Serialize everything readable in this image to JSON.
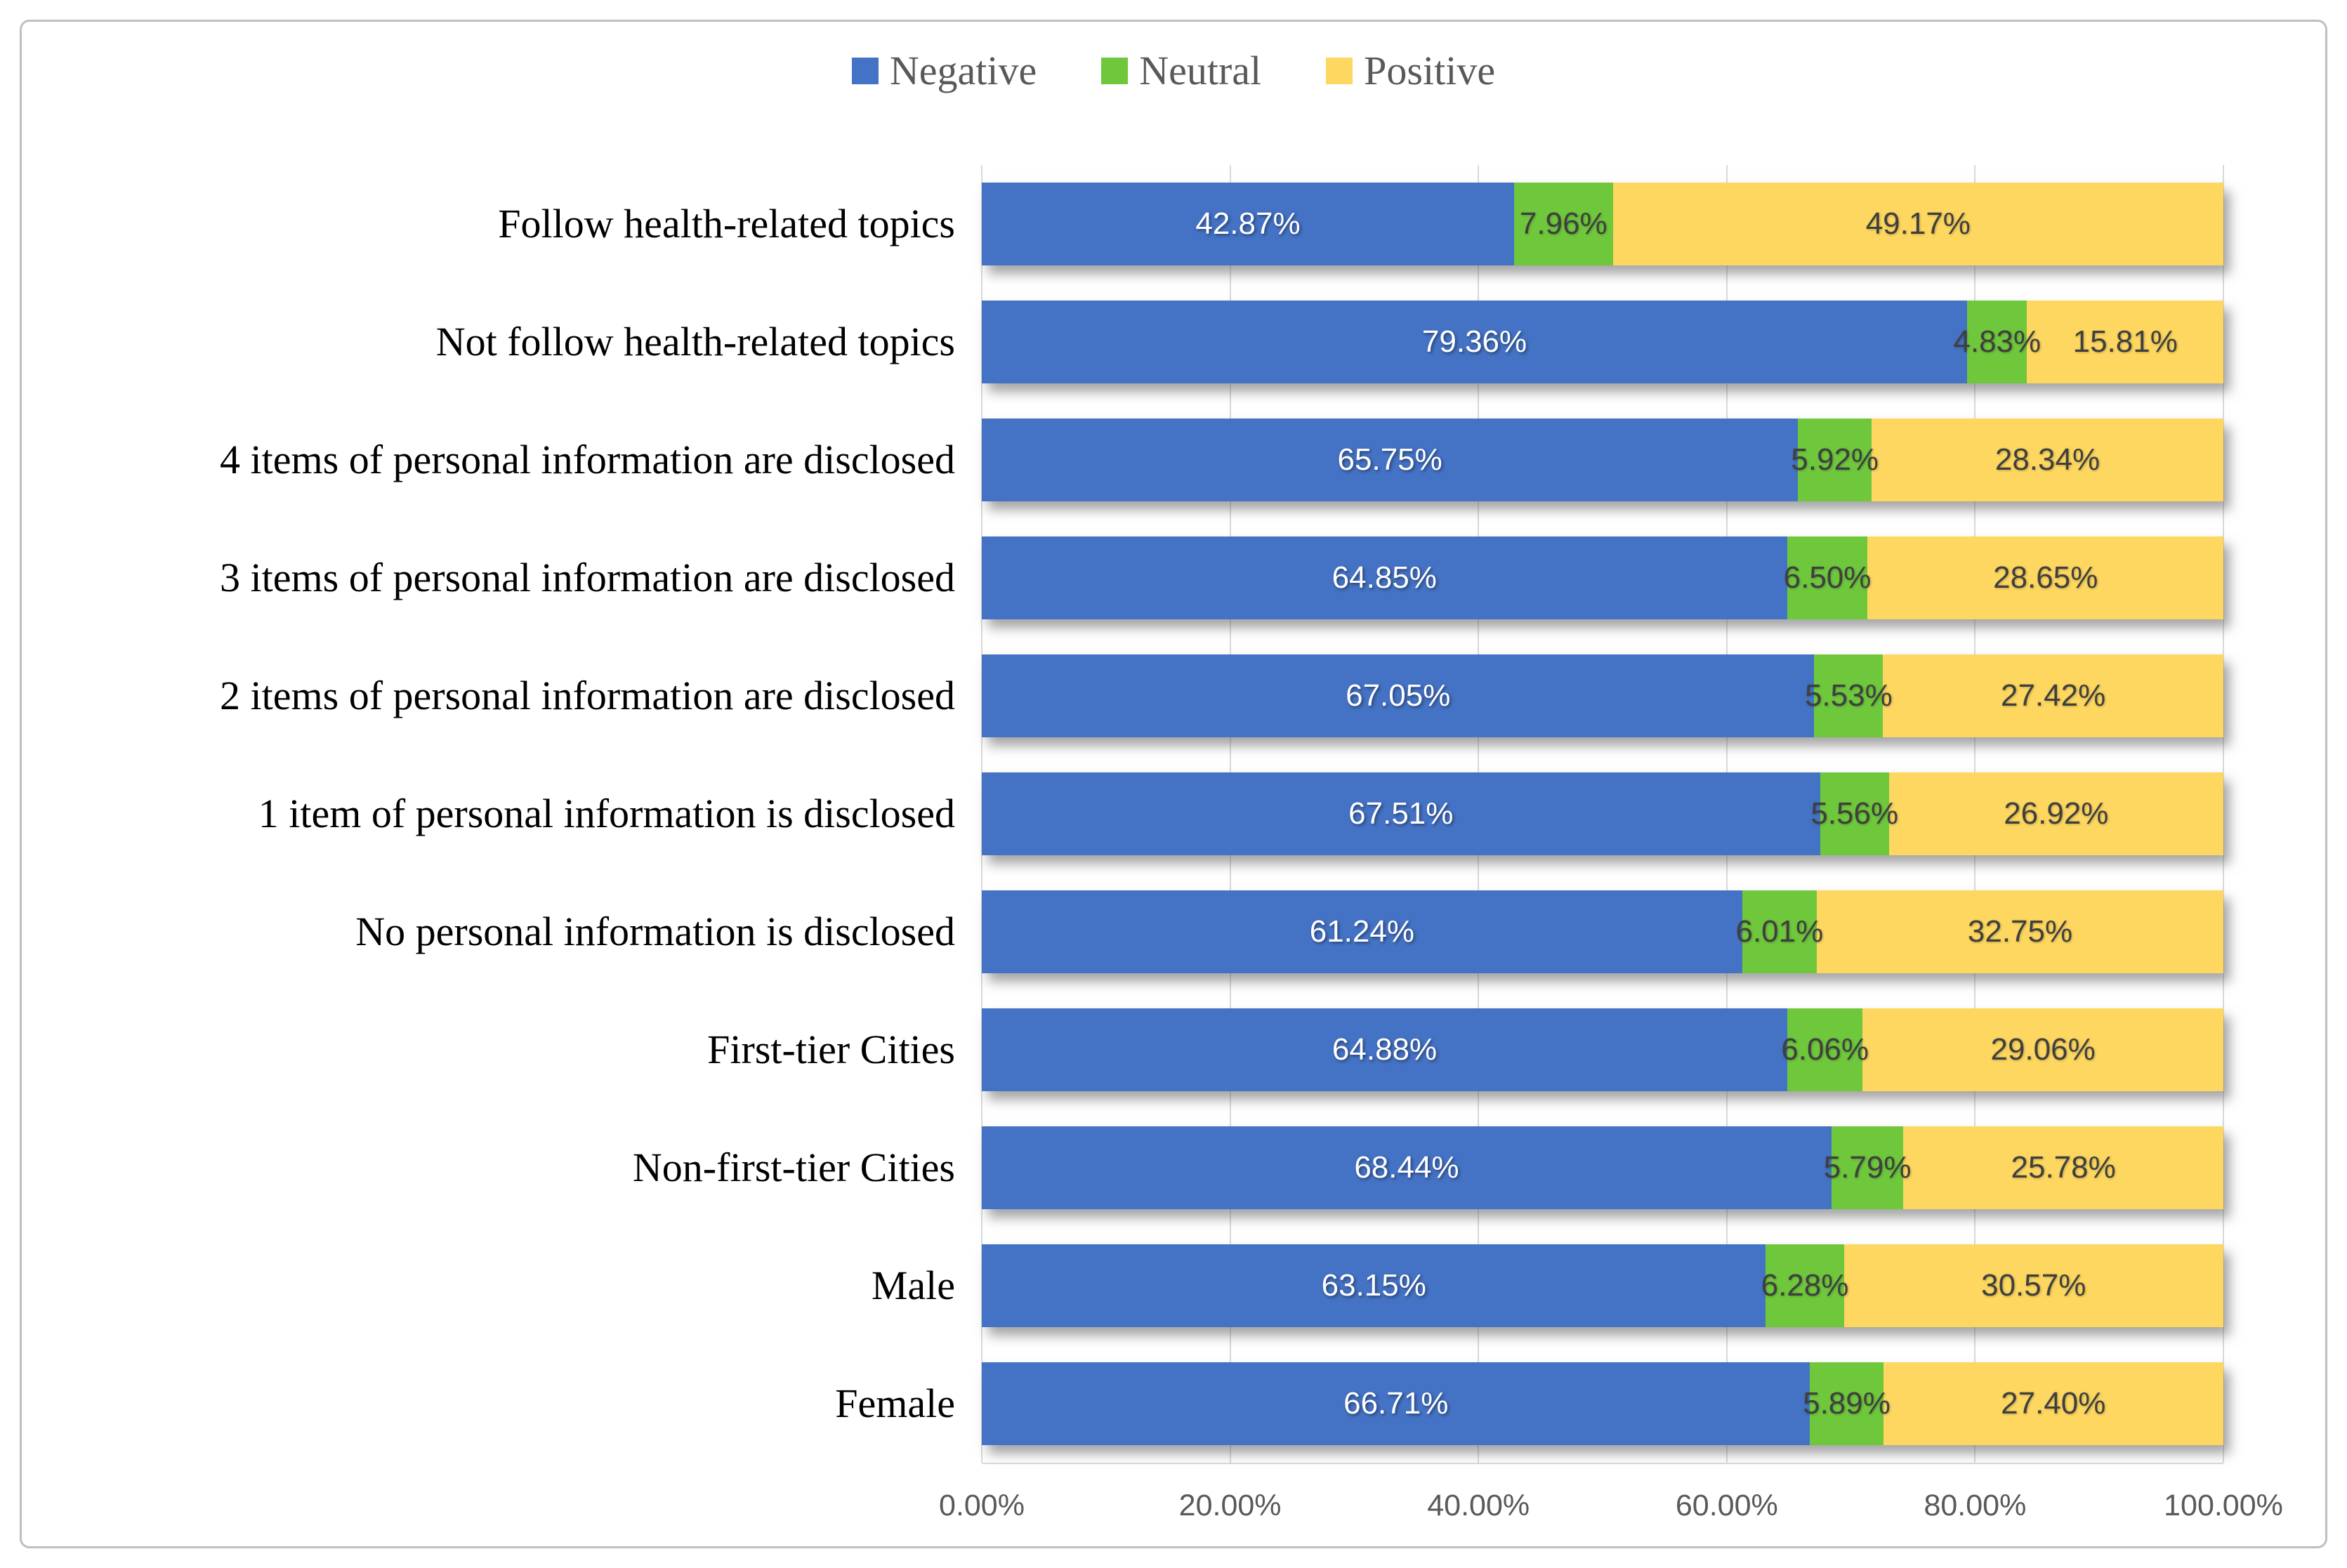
{
  "chart_data": {
    "type": "bar",
    "variant": "horizontal_stacked",
    "title": "",
    "xlabel": "",
    "ylabel": "",
    "categories": [
      "Follow health-related topics",
      "Not follow health-related topics",
      "4 items of personal information are disclosed",
      "3 items of personal information are disclosed",
      "2 items of personal information are disclosed",
      "1 item of personal information is disclosed",
      "No personal information is disclosed",
      "First-tier Cities",
      "Non-first-tier Cities",
      "Male",
      "Female"
    ],
    "series": [
      {
        "name": "Negative",
        "color": "#4472C4",
        "label_color": "#FFFFFF",
        "values": [
          42.87,
          79.36,
          65.75,
          64.85,
          67.05,
          67.51,
          61.24,
          64.88,
          68.44,
          63.15,
          66.71
        ]
      },
      {
        "name": "Neutral",
        "color": "#6FC83C",
        "label_color": "#3F3F3F",
        "values": [
          7.96,
          4.83,
          5.92,
          6.5,
          5.53,
          5.56,
          6.01,
          6.06,
          5.79,
          6.28,
          5.89
        ]
      },
      {
        "name": "Positive",
        "color": "#FDD75F",
        "label_color": "#3F3F3F",
        "values": [
          49.17,
          15.81,
          28.34,
          28.65,
          27.42,
          26.92,
          32.75,
          29.06,
          25.78,
          30.57,
          27.4
        ]
      }
    ],
    "data_label_format": "0.00%",
    "x_ticks": [
      "0.00%",
      "20.00%",
      "40.00%",
      "60.00%",
      "80.00%",
      "100.00%"
    ],
    "xlim": [
      0,
      100
    ],
    "grid": "vertical",
    "legend_position": "top"
  },
  "colors": {
    "frame_border": "#BFBFBF",
    "gridline": "#D9D9D9",
    "axis_text": "#595959",
    "legend_text": "#595959",
    "category_text": "#000000"
  }
}
